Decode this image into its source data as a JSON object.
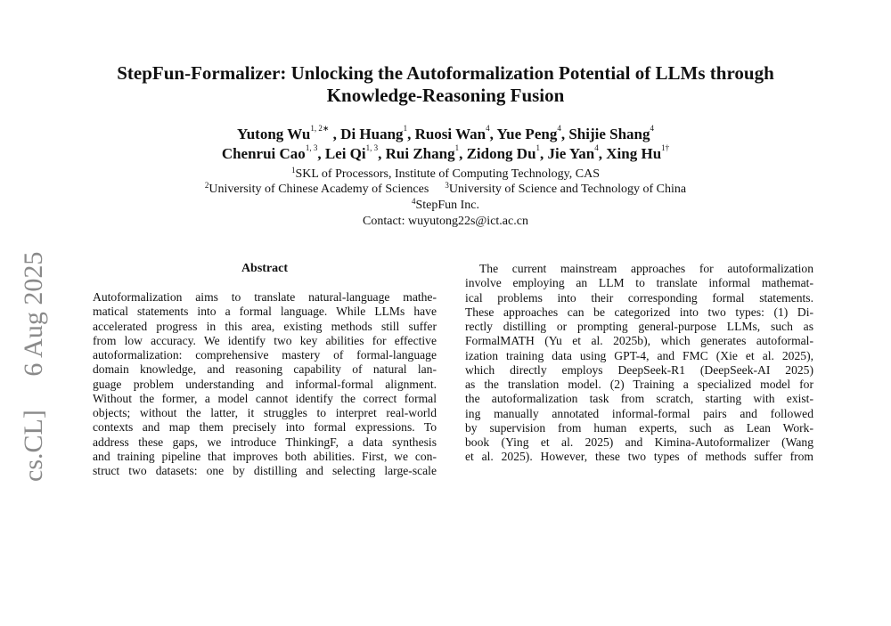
{
  "arxiv_stamp": "cs.CL]     6 Aug 2025",
  "title_lines": [
    "StepFun-Formalizer: Unlocking the Autoformalization Potential of LLMs through",
    "Knowledge-Reasoning Fusion"
  ],
  "authors": {
    "line1": [
      {
        "name": "Yutong Wu",
        "sup": "1, 2∗"
      },
      {
        "name": " , Di Huang",
        "sup": "1"
      },
      {
        "name": ", Ruosi Wan",
        "sup": "4"
      },
      {
        "name": ", Yue Peng",
        "sup": "4"
      },
      {
        "name": ", Shijie Shang",
        "sup": "4"
      }
    ],
    "line2": [
      {
        "name": "Chenrui Cao",
        "sup": "1, 3"
      },
      {
        "name": ", Lei Qi",
        "sup": "1, 3"
      },
      {
        "name": ", Rui Zhang",
        "sup": "1"
      },
      {
        "name": ", Zidong Du",
        "sup": "1"
      },
      {
        "name": ", Jie Yan",
        "sup": "4"
      },
      {
        "name": ", Xing Hu",
        "sup": "1†"
      }
    ]
  },
  "affiliations": {
    "a1": {
      "sup": "1",
      "text": "SKL of Processors, Institute of Computing Technology, CAS"
    },
    "a2": {
      "sup": "2",
      "text": "University of Chinese Academy of Sciences"
    },
    "a3": {
      "sup": "3",
      "text": "University of Science and Technology of China"
    },
    "a4": {
      "sup": "4",
      "text": "StepFun Inc."
    },
    "contact": "Contact: wuyutong22s@ict.ac.cn"
  },
  "abstract": {
    "heading": "Abstract",
    "lines": [
      "Autoformalization aims to translate natural-language mathe-",
      "matical statements into a formal language. While LLMs have",
      "accelerated progress in this area, existing methods still suffer",
      "from low accuracy. We identify two key abilities for effective",
      "autoformalization: comprehensive mastery of formal-language",
      "domain knowledge, and reasoning capability of natural lan-",
      "guage problem understanding and informal-formal alignment.",
      "Without the former, a model cannot identify the correct formal",
      "objects; without the latter, it struggles to interpret real-world",
      "contexts and map them precisely into formal expressions. To",
      "address these gaps, we introduce ThinkingF, a data synthesis",
      "and training pipeline that improves both abilities. First, we con-",
      "struct two datasets: one by distilling and selecting large-scale"
    ]
  },
  "intro": {
    "lines": [
      "The current mainstream approaches for autoformalization",
      "involve employing an LLM to translate informal mathemat-",
      "ical problems into their corresponding formal statements.",
      "These approaches can be categorized into two types: (1) Di-",
      "rectly distilling or prompting general-purpose LLMs, such as",
      "FormalMATH (Yu et al. 2025b), which generates autoformal-",
      "ization training data using GPT-4, and FMC (Xie et al. 2025),",
      "which directly employs DeepSeek-R1 (DeepSeek-AI 2025)",
      "as the translation model. (2) Training a specialized model for",
      "the autoformalization task from scratch, starting with exist-",
      "ing manually annotated informal-formal pairs and followed",
      "by supervision from human experts, such as Lean Work-",
      "book (Ying et al. 2025) and Kimina-Autoformalizer (Wang",
      "et al. 2025). However, these two types of methods suffer from"
    ]
  }
}
